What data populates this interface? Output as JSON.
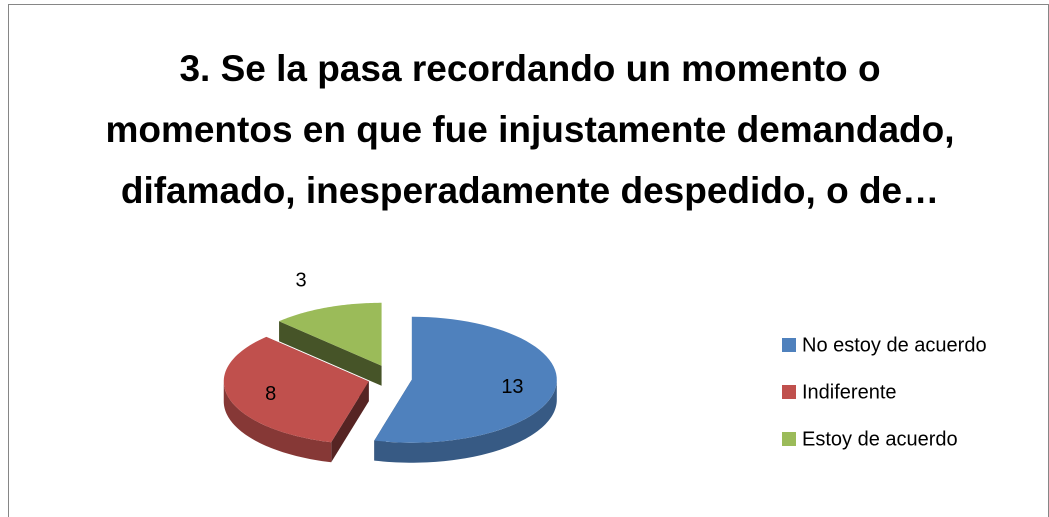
{
  "chart_data": {
    "type": "pie",
    "title": "3. Se la pasa recordando un momento o momentos en que fue injustamente demandado, difamado, inesperadamente despedido, o de…",
    "categories": [
      "No estoy de acuerdo",
      "Indiferente",
      "Estoy de acuerdo"
    ],
    "values": [
      13,
      8,
      3
    ],
    "colors": [
      "#4f81bd",
      "#c0504d",
      "#9bbb59"
    ],
    "legend": "right"
  }
}
